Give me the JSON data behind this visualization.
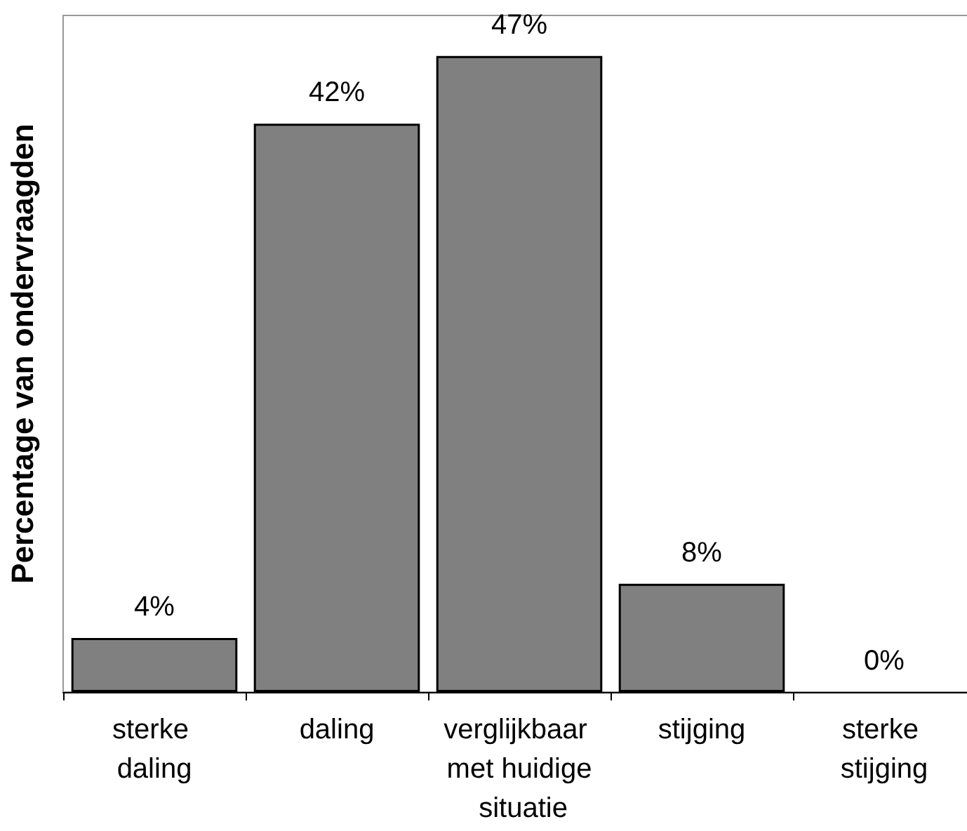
{
  "chart_data": {
    "type": "bar",
    "ylabel": "Percentage van ondervraagden",
    "categories": [
      "sterke daling",
      "daling",
      "verglijkbaar met huidige situatie",
      "stijging",
      "sterke stijging"
    ],
    "values": [
      4,
      42,
      47,
      8,
      0
    ],
    "value_labels": [
      "4%",
      "42%",
      "47%",
      "8%",
      "0%"
    ],
    "color": "#808080",
    "tick_labels": "x"
  }
}
